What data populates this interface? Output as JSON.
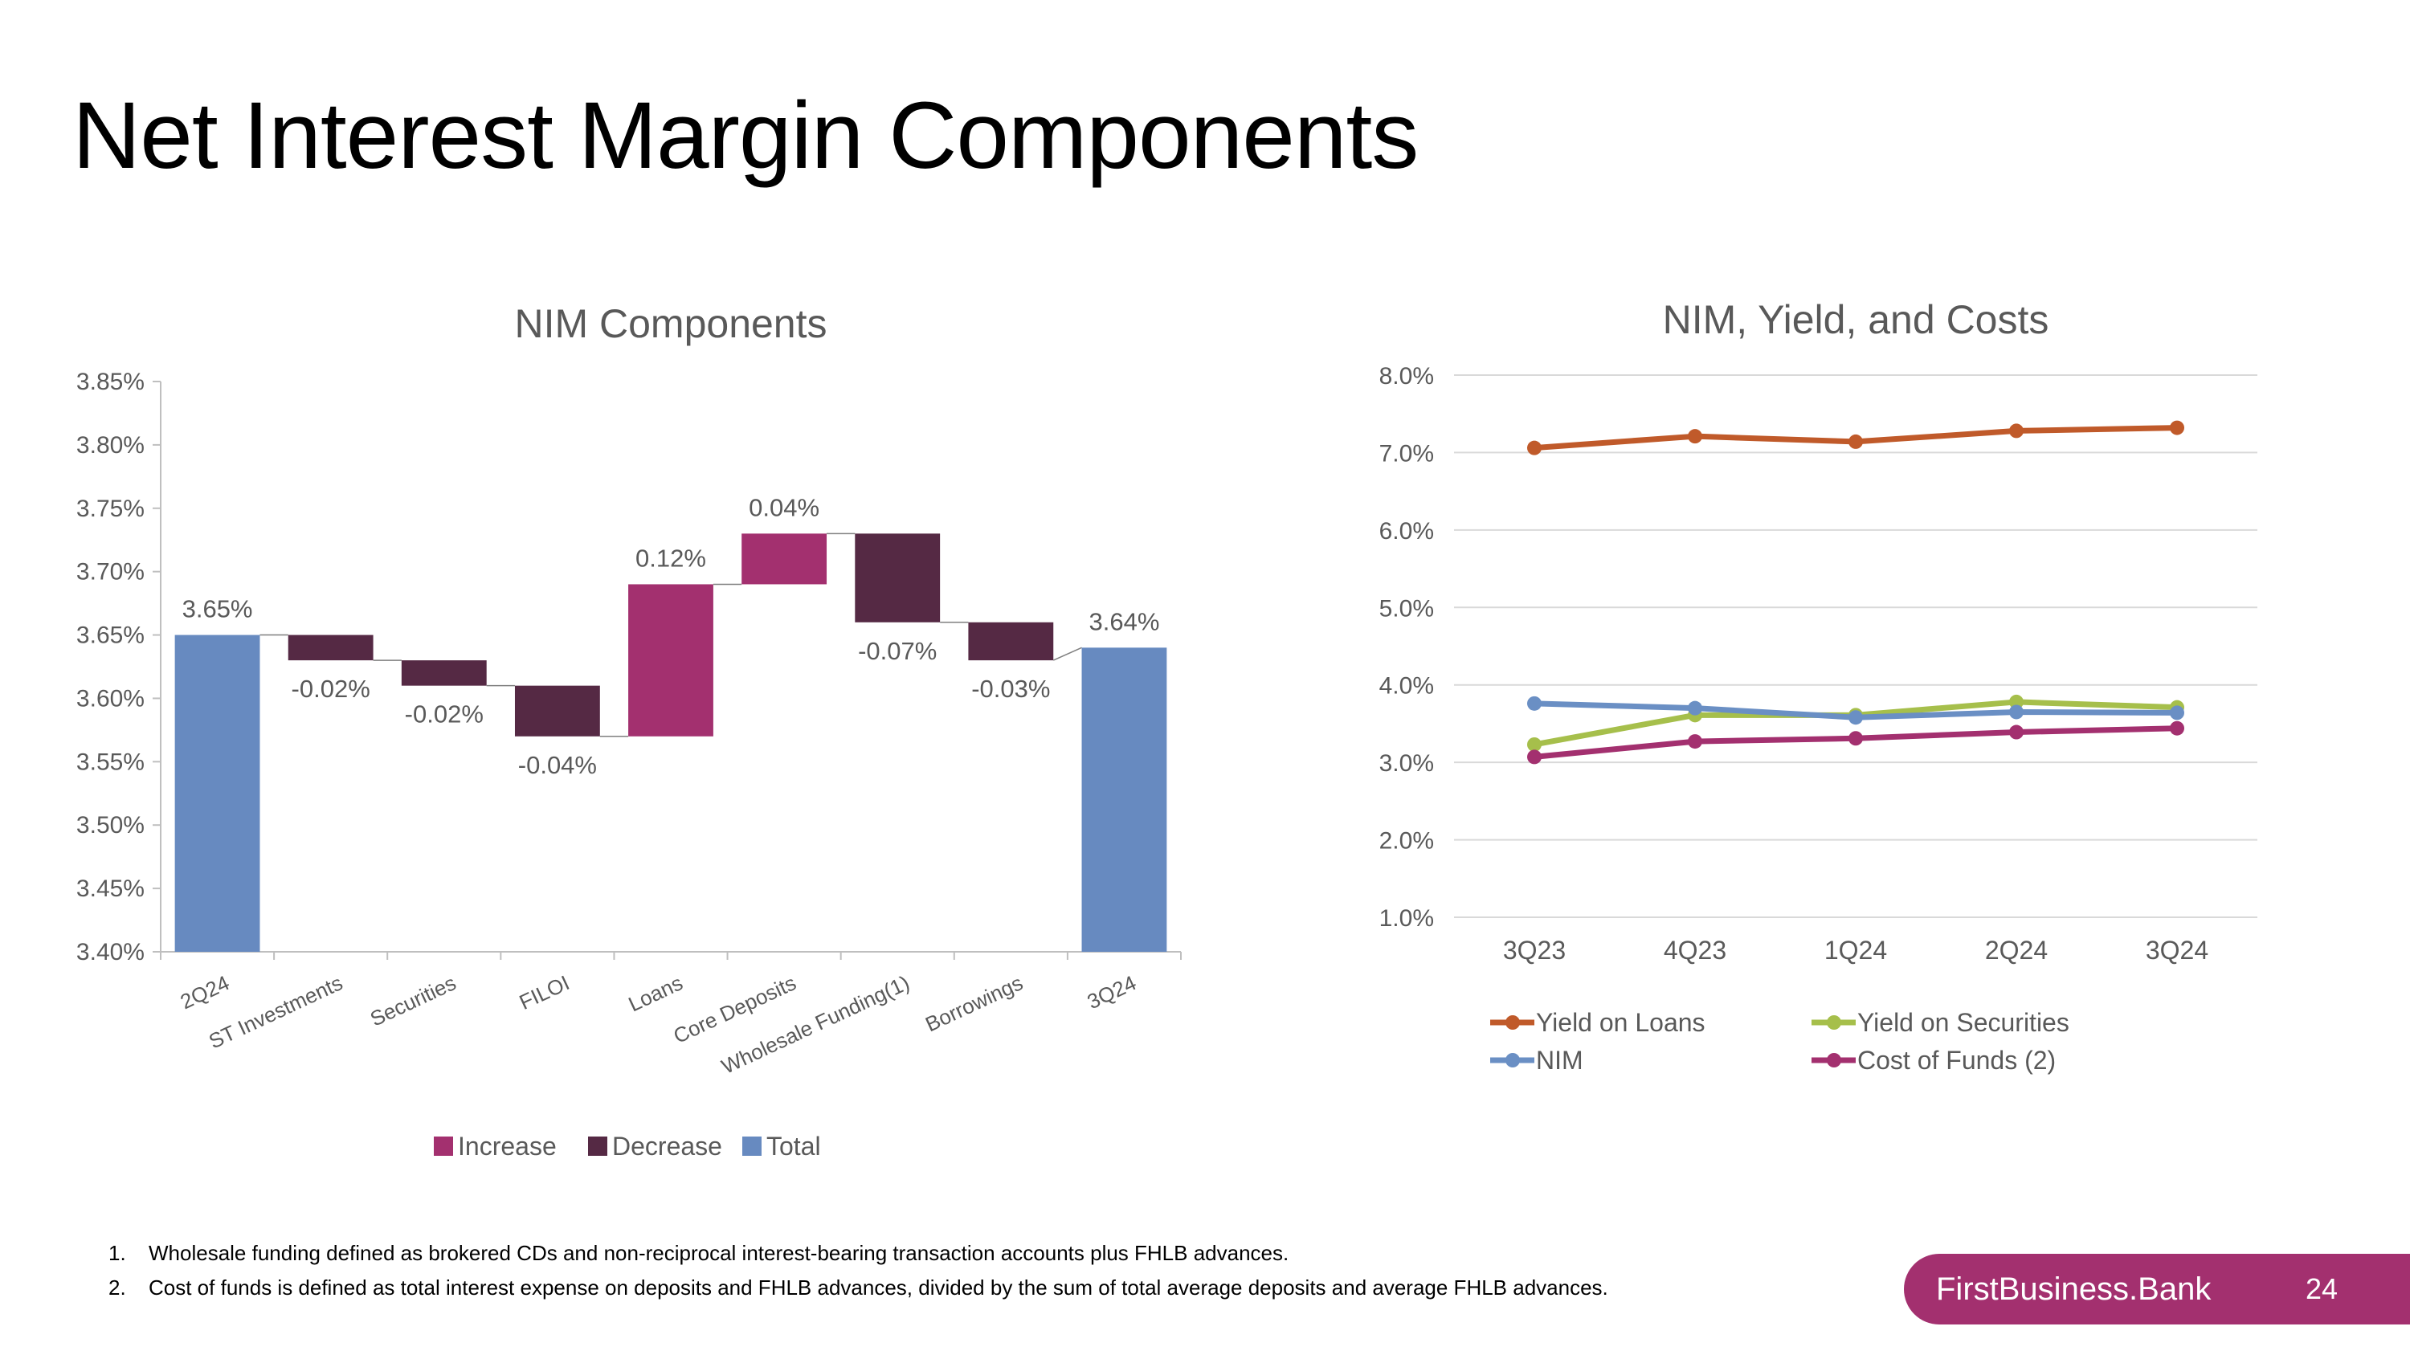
{
  "page": {
    "title": "Net Interest Margin Components",
    "page_number": "24",
    "brand": "FirstBusiness.Bank",
    "brand_color": "#a3306f"
  },
  "footnotes": [
    {
      "num": "1.",
      "text": "Wholesale funding defined as brokered CDs and non-reciprocal interest-bearing transaction accounts plus FHLB advances."
    },
    {
      "num": "2.",
      "text": "Cost of funds is defined as total interest expense on deposits and FHLB advances, divided by the sum of total average deposits and average FHLB advances."
    }
  ],
  "chart_data": [
    {
      "type": "bar",
      "subtype": "waterfall",
      "title": "NIM Components",
      "categories": [
        "2Q24",
        "ST Investments",
        "Securities",
        "FILOI",
        "Loans",
        "Core Deposits",
        "Wholesale Funding(1)",
        "Borrowings",
        "3Q24"
      ],
      "values": [
        3.65,
        -0.02,
        -0.02,
        -0.04,
        0.12,
        0.04,
        -0.07,
        -0.03,
        3.64
      ],
      "kinds": [
        "Total",
        "Decrease",
        "Decrease",
        "Decrease",
        "Increase",
        "Increase",
        "Decrease",
        "Decrease",
        "Total"
      ],
      "data_labels": [
        "3.65%",
        "-0.02%",
        "-0.02%",
        "-0.04%",
        "0.12%",
        "0.04%",
        "-0.07%",
        "-0.03%",
        "3.64%"
      ],
      "ylim": [
        3.4,
        3.85
      ],
      "yticks": [
        "3.40%",
        "3.45%",
        "3.50%",
        "3.55%",
        "3.60%",
        "3.65%",
        "3.70%",
        "3.75%",
        "3.80%",
        "3.85%"
      ],
      "legend": [
        {
          "name": "Increase",
          "color": "#a3306f"
        },
        {
          "name": "Decrease",
          "color": "#552944"
        },
        {
          "name": "Total",
          "color": "#678ac0"
        }
      ],
      "legend_position": "bottom"
    },
    {
      "type": "line",
      "title": "NIM, Yield, and Costs",
      "x": [
        "3Q23",
        "4Q23",
        "1Q24",
        "2Q24",
        "3Q24"
      ],
      "ylim": [
        1.0,
        8.0
      ],
      "yticks": [
        "1.0%",
        "2.0%",
        "3.0%",
        "4.0%",
        "5.0%",
        "6.0%",
        "7.0%",
        "8.0%"
      ],
      "grid": true,
      "series": [
        {
          "name": "Yield on Loans",
          "values": [
            7.06,
            7.21,
            7.14,
            7.28,
            7.32
          ],
          "color": "#c05a2a"
        },
        {
          "name": "Yield on Securities",
          "values": [
            3.23,
            3.61,
            3.61,
            3.78,
            3.71
          ],
          "color": "#a6bf4b"
        },
        {
          "name": "NIM",
          "values": [
            3.76,
            3.7,
            3.58,
            3.65,
            3.64
          ],
          "color": "#6a8fc4"
        },
        {
          "name": "Cost of Funds (2)",
          "values": [
            3.07,
            3.27,
            3.31,
            3.39,
            3.44
          ],
          "color": "#a3306f"
        }
      ],
      "legend_position": "bottom"
    }
  ]
}
